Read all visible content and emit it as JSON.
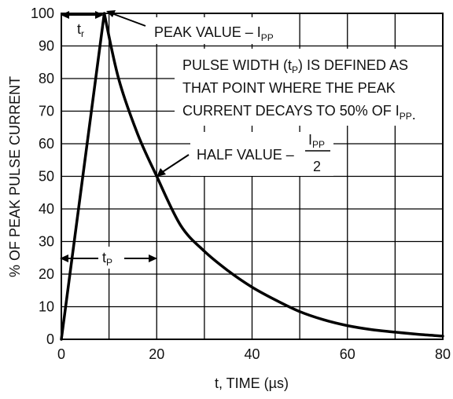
{
  "chart_data": {
    "type": "line",
    "xlabel": "t, TIME (µs)",
    "ylabel": "% OF PEAK PULSE CURRENT",
    "xlim": [
      0,
      80
    ],
    "ylim": [
      0,
      100
    ],
    "x_ticks": [
      "0",
      "20",
      "40",
      "60",
      "80"
    ],
    "y_ticks": [
      "0",
      "10",
      "20",
      "30",
      "40",
      "50",
      "60",
      "70",
      "80",
      "90",
      "100"
    ],
    "grid": true,
    "series": [
      {
        "x": [
          0,
          9,
          12,
          16,
          20,
          25,
          30,
          35,
          40,
          45,
          50,
          55,
          60,
          65,
          70,
          75,
          80
        ],
        "y": [
          0,
          100,
          80,
          63,
          50,
          35,
          27,
          21,
          16,
          12,
          8.5,
          6,
          4.2,
          3,
          2.2,
          1.5,
          1
        ]
      }
    ],
    "annotations": {
      "tr_main": "t",
      "tr_sub": "r",
      "peak_main": "PEAK VALUE – I",
      "peak_sub": "PP",
      "pw_line1_a": "PULSE WIDTH (t",
      "pw_line1_sub": "P",
      "pw_line1_b": ") IS DEFINED AS",
      "pw_line2": "THAT POINT WHERE THE PEAK",
      "pw_line3_a": "CURRENT DECAYS TO 50% OF I",
      "pw_line3_sub": "PP",
      "pw_line3_b": ".",
      "half_main": "HALF VALUE –",
      "half_num_main": "I",
      "half_num_sub": "PP",
      "half_den": "2",
      "tp_main": "t",
      "tp_sub": "P"
    }
  }
}
